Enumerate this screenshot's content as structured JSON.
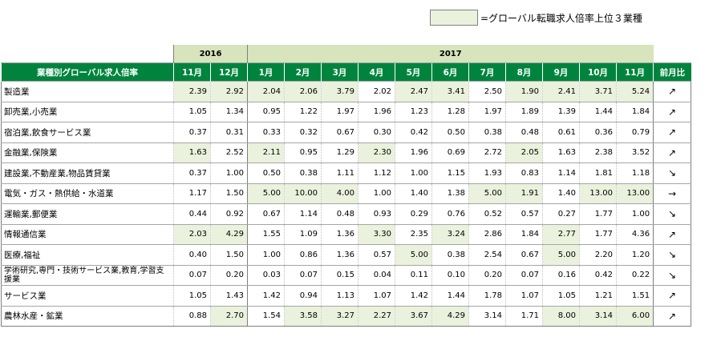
{
  "legend": {
    "text": "=グローバル転職求人倍率上位３業種",
    "highlight_color": "#eaf1dd"
  },
  "colors": {
    "header_green": "#00843d",
    "year_band": "#d7e4bc",
    "highlight": "#eaf1dd"
  },
  "years": {
    "y2016": "2016",
    "y2017": "2017"
  },
  "header": {
    "category": "業種別グローバル求人倍率",
    "months": [
      "11月",
      "12月",
      "1月",
      "2月",
      "3月",
      "4月",
      "5月",
      "6月",
      "7月",
      "8月",
      "9月",
      "10月",
      "11月"
    ],
    "trend": "前月比"
  },
  "rows": [
    {
      "name": "製造業",
      "values": [
        "2.39",
        "2.92",
        "2.04",
        "2.06",
        "3.79",
        "2.02",
        "2.47",
        "3.41",
        "2.50",
        "1.90",
        "2.41",
        "3.71",
        "5.24"
      ],
      "hl": [
        0,
        1,
        2,
        3,
        4,
        6,
        7,
        9,
        10,
        11,
        12
      ],
      "trend": "↗"
    },
    {
      "name": "卸売業,小売業",
      "values": [
        "1.05",
        "1.34",
        "0.95",
        "1.22",
        "1.97",
        "1.96",
        "1.23",
        "1.28",
        "1.97",
        "1.89",
        "1.39",
        "1.44",
        "1.84"
      ],
      "hl": [],
      "trend": "↗"
    },
    {
      "name": "宿泊業,飲食サービス業",
      "values": [
        "0.37",
        "0.31",
        "0.33",
        "0.32",
        "0.67",
        "0.30",
        "0.42",
        "0.50",
        "0.38",
        "0.48",
        "0.61",
        "0.36",
        "0.79"
      ],
      "hl": [],
      "trend": "↗"
    },
    {
      "name": "金融業,保険業",
      "values": [
        "1.63",
        "2.52",
        "2.11",
        "0.95",
        "1.29",
        "2.30",
        "1.96",
        "0.69",
        "2.72",
        "2.05",
        "1.63",
        "2.38",
        "3.52"
      ],
      "hl": [
        0,
        2,
        5,
        9
      ],
      "trend": "↗"
    },
    {
      "name": "建設業,不動産業,物品賃貸業",
      "values": [
        "0.37",
        "1.00",
        "0.50",
        "0.38",
        "1.11",
        "1.12",
        "1.00",
        "1.15",
        "1.93",
        "0.83",
        "1.14",
        "1.81",
        "1.18"
      ],
      "hl": [],
      "trend": "↘"
    },
    {
      "name": "電気・ガス・熱供給・水道業",
      "values": [
        "1.17",
        "1.50",
        "5.00",
        "10.00",
        "4.00",
        "1.00",
        "1.40",
        "1.38",
        "5.00",
        "1.91",
        "1.40",
        "13.00",
        "13.00"
      ],
      "hl": [
        2,
        3,
        4,
        8,
        9,
        11,
        12
      ],
      "trend": "→"
    },
    {
      "name": "運輸業,郵便業",
      "values": [
        "0.44",
        "0.92",
        "0.67",
        "1.14",
        "0.48",
        "0.93",
        "0.29",
        "0.76",
        "0.52",
        "0.57",
        "0.27",
        "1.77",
        "1.00"
      ],
      "hl": [],
      "trend": "↘"
    },
    {
      "name": "情報通信業",
      "values": [
        "2.03",
        "4.29",
        "1.55",
        "1.09",
        "1.36",
        "3.30",
        "2.35",
        "3.24",
        "2.86",
        "1.84",
        "2.77",
        "1.77",
        "4.36"
      ],
      "hl": [
        0,
        1,
        5,
        7,
        10
      ],
      "trend": "↗"
    },
    {
      "name": "医療,福祉",
      "values": [
        "0.40",
        "1.50",
        "1.00",
        "0.86",
        "1.36",
        "0.57",
        "5.00",
        "0.38",
        "2.54",
        "0.67",
        "5.00",
        "2.20",
        "1.20"
      ],
      "hl": [
        6,
        10
      ],
      "trend": "↘"
    },
    {
      "name": "学術研究,専門・技術サービス業,教育,学習支援業",
      "values": [
        "0.07",
        "0.20",
        "0.03",
        "0.07",
        "0.15",
        "0.04",
        "0.11",
        "0.10",
        "0.20",
        "0.07",
        "0.16",
        "0.42",
        "0.22"
      ],
      "hl": [],
      "trend": "↘",
      "wrap": true
    },
    {
      "name": "サービス業",
      "values": [
        "1.05",
        "1.43",
        "1.42",
        "0.94",
        "1.13",
        "1.07",
        "1.42",
        "1.44",
        "1.78",
        "1.07",
        "1.05",
        "1.21",
        "1.51"
      ],
      "hl": [],
      "trend": "↗"
    },
    {
      "name": "農林水産・鉱業",
      "values": [
        "0.88",
        "2.70",
        "1.54",
        "3.58",
        "3.27",
        "2.27",
        "3.67",
        "4.29",
        "3.14",
        "1.71",
        "8.00",
        "3.14",
        "6.00"
      ],
      "hl": [
        1,
        3,
        4,
        5,
        6,
        7,
        10,
        11,
        12
      ],
      "trend": "↗"
    }
  ]
}
